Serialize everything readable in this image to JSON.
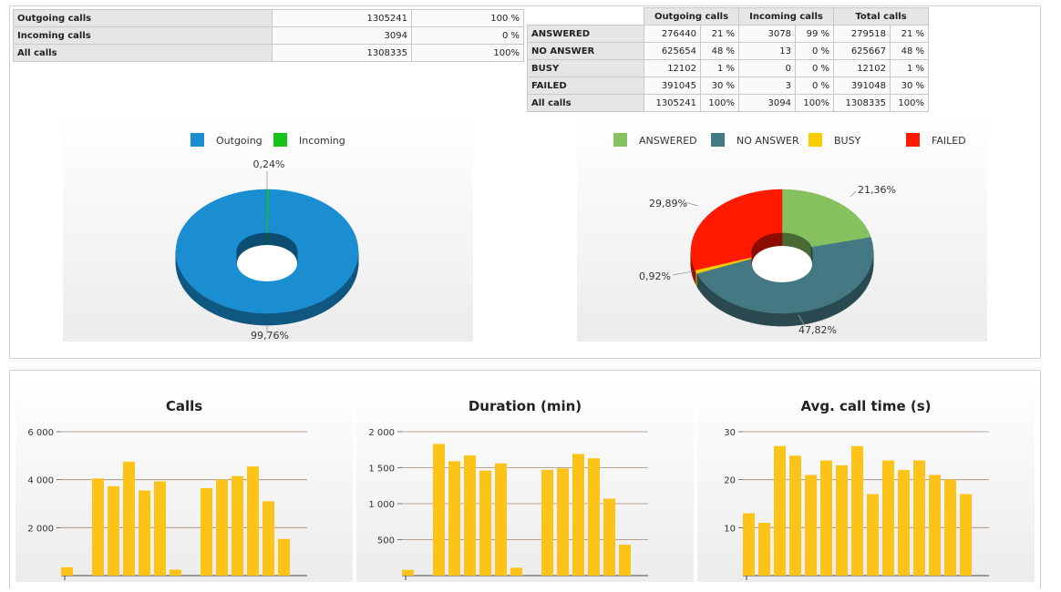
{
  "summary_table": {
    "rows": [
      {
        "label": "Outgoing calls",
        "count": "1305241",
        "percent": "100 %"
      },
      {
        "label": "Incoming calls",
        "count": "3094",
        "percent": "0 %"
      },
      {
        "label": "All calls",
        "count": "1308335",
        "percent": "100%"
      }
    ]
  },
  "status_table": {
    "headers": [
      "Outgoing calls",
      "Incoming calls",
      "Total calls"
    ],
    "rows": [
      {
        "label": "ANSWERED",
        "cells": [
          "276440",
          "21 %",
          "3078",
          "99 %",
          "279518",
          "21 %"
        ]
      },
      {
        "label": "NO ANSWER",
        "cells": [
          "625654",
          "48 %",
          "13",
          "0 %",
          "625667",
          "48 %"
        ]
      },
      {
        "label": "BUSY",
        "cells": [
          "12102",
          "1 %",
          "0",
          "0 %",
          "12102",
          "1 %"
        ]
      },
      {
        "label": "FAILED",
        "cells": [
          "391045",
          "30 %",
          "3",
          "0 %",
          "391048",
          "30 %"
        ]
      },
      {
        "label": "All calls",
        "cells": [
          "1305241",
          "100%",
          "3094",
          "100%",
          "1308335",
          "100%"
        ]
      }
    ]
  },
  "colors": {
    "outgoing": "#1a8ed0",
    "incoming": "#17c31a",
    "answered": "#86c160",
    "no_answer": "#447883",
    "busy": "#f7cd00",
    "failed": "#ff1a00",
    "bar": "#fcc419",
    "gridline": "#a08876"
  },
  "chart_data": [
    {
      "type": "pie",
      "style": "3d-donut",
      "legend_position": "top",
      "labels": [
        "Outgoing",
        "Incoming"
      ],
      "values": [
        99.76,
        0.24
      ],
      "value_labels": [
        "99,76%",
        "0,24%"
      ]
    },
    {
      "type": "pie",
      "style": "3d-donut",
      "legend_position": "top",
      "labels": [
        "ANSWERED",
        "NO ANSWER",
        "BUSY",
        "FAILED"
      ],
      "values": [
        21.36,
        47.82,
        0.92,
        29.89
      ],
      "value_labels": [
        "21,36%",
        "47,82%",
        "0,92%",
        "29,89%"
      ]
    },
    {
      "type": "bar",
      "title": "Calls",
      "xlabel": "",
      "ylabel": "",
      "grid": true,
      "ylim": [
        0,
        6000
      ],
      "yticks": [
        2000,
        4000,
        6000
      ],
      "ytick_labels": [
        "2 000",
        "4 000",
        "6 000"
      ],
      "values": [
        350,
        4050,
        3730,
        4750,
        3550,
        3930,
        250,
        3650,
        4000,
        4150,
        4550,
        3100,
        1530
      ]
    },
    {
      "type": "bar",
      "title": "Duration (min)",
      "xlabel": "",
      "ylabel": "",
      "grid": true,
      "ylim": [
        0,
        2000
      ],
      "yticks": [
        500,
        1000,
        1500,
        2000
      ],
      "ytick_labels": [
        "500",
        "1 000",
        "1 500",
        "2 000"
      ],
      "values": [
        80,
        1830,
        1590,
        1670,
        1460,
        1560,
        110,
        1470,
        1490,
        1690,
        1630,
        1070,
        430
      ]
    },
    {
      "type": "bar",
      "title": "Avg. call time (s)",
      "xlabel": "",
      "ylabel": "",
      "grid": true,
      "ylim": [
        0,
        30
      ],
      "yticks": [
        10,
        20,
        30
      ],
      "ytick_labels": [
        "10",
        "20",
        "30"
      ],
      "values": [
        13,
        11,
        27,
        25,
        21,
        24,
        23,
        27,
        17,
        24,
        22,
        24,
        21,
        20,
        17
      ]
    }
  ]
}
